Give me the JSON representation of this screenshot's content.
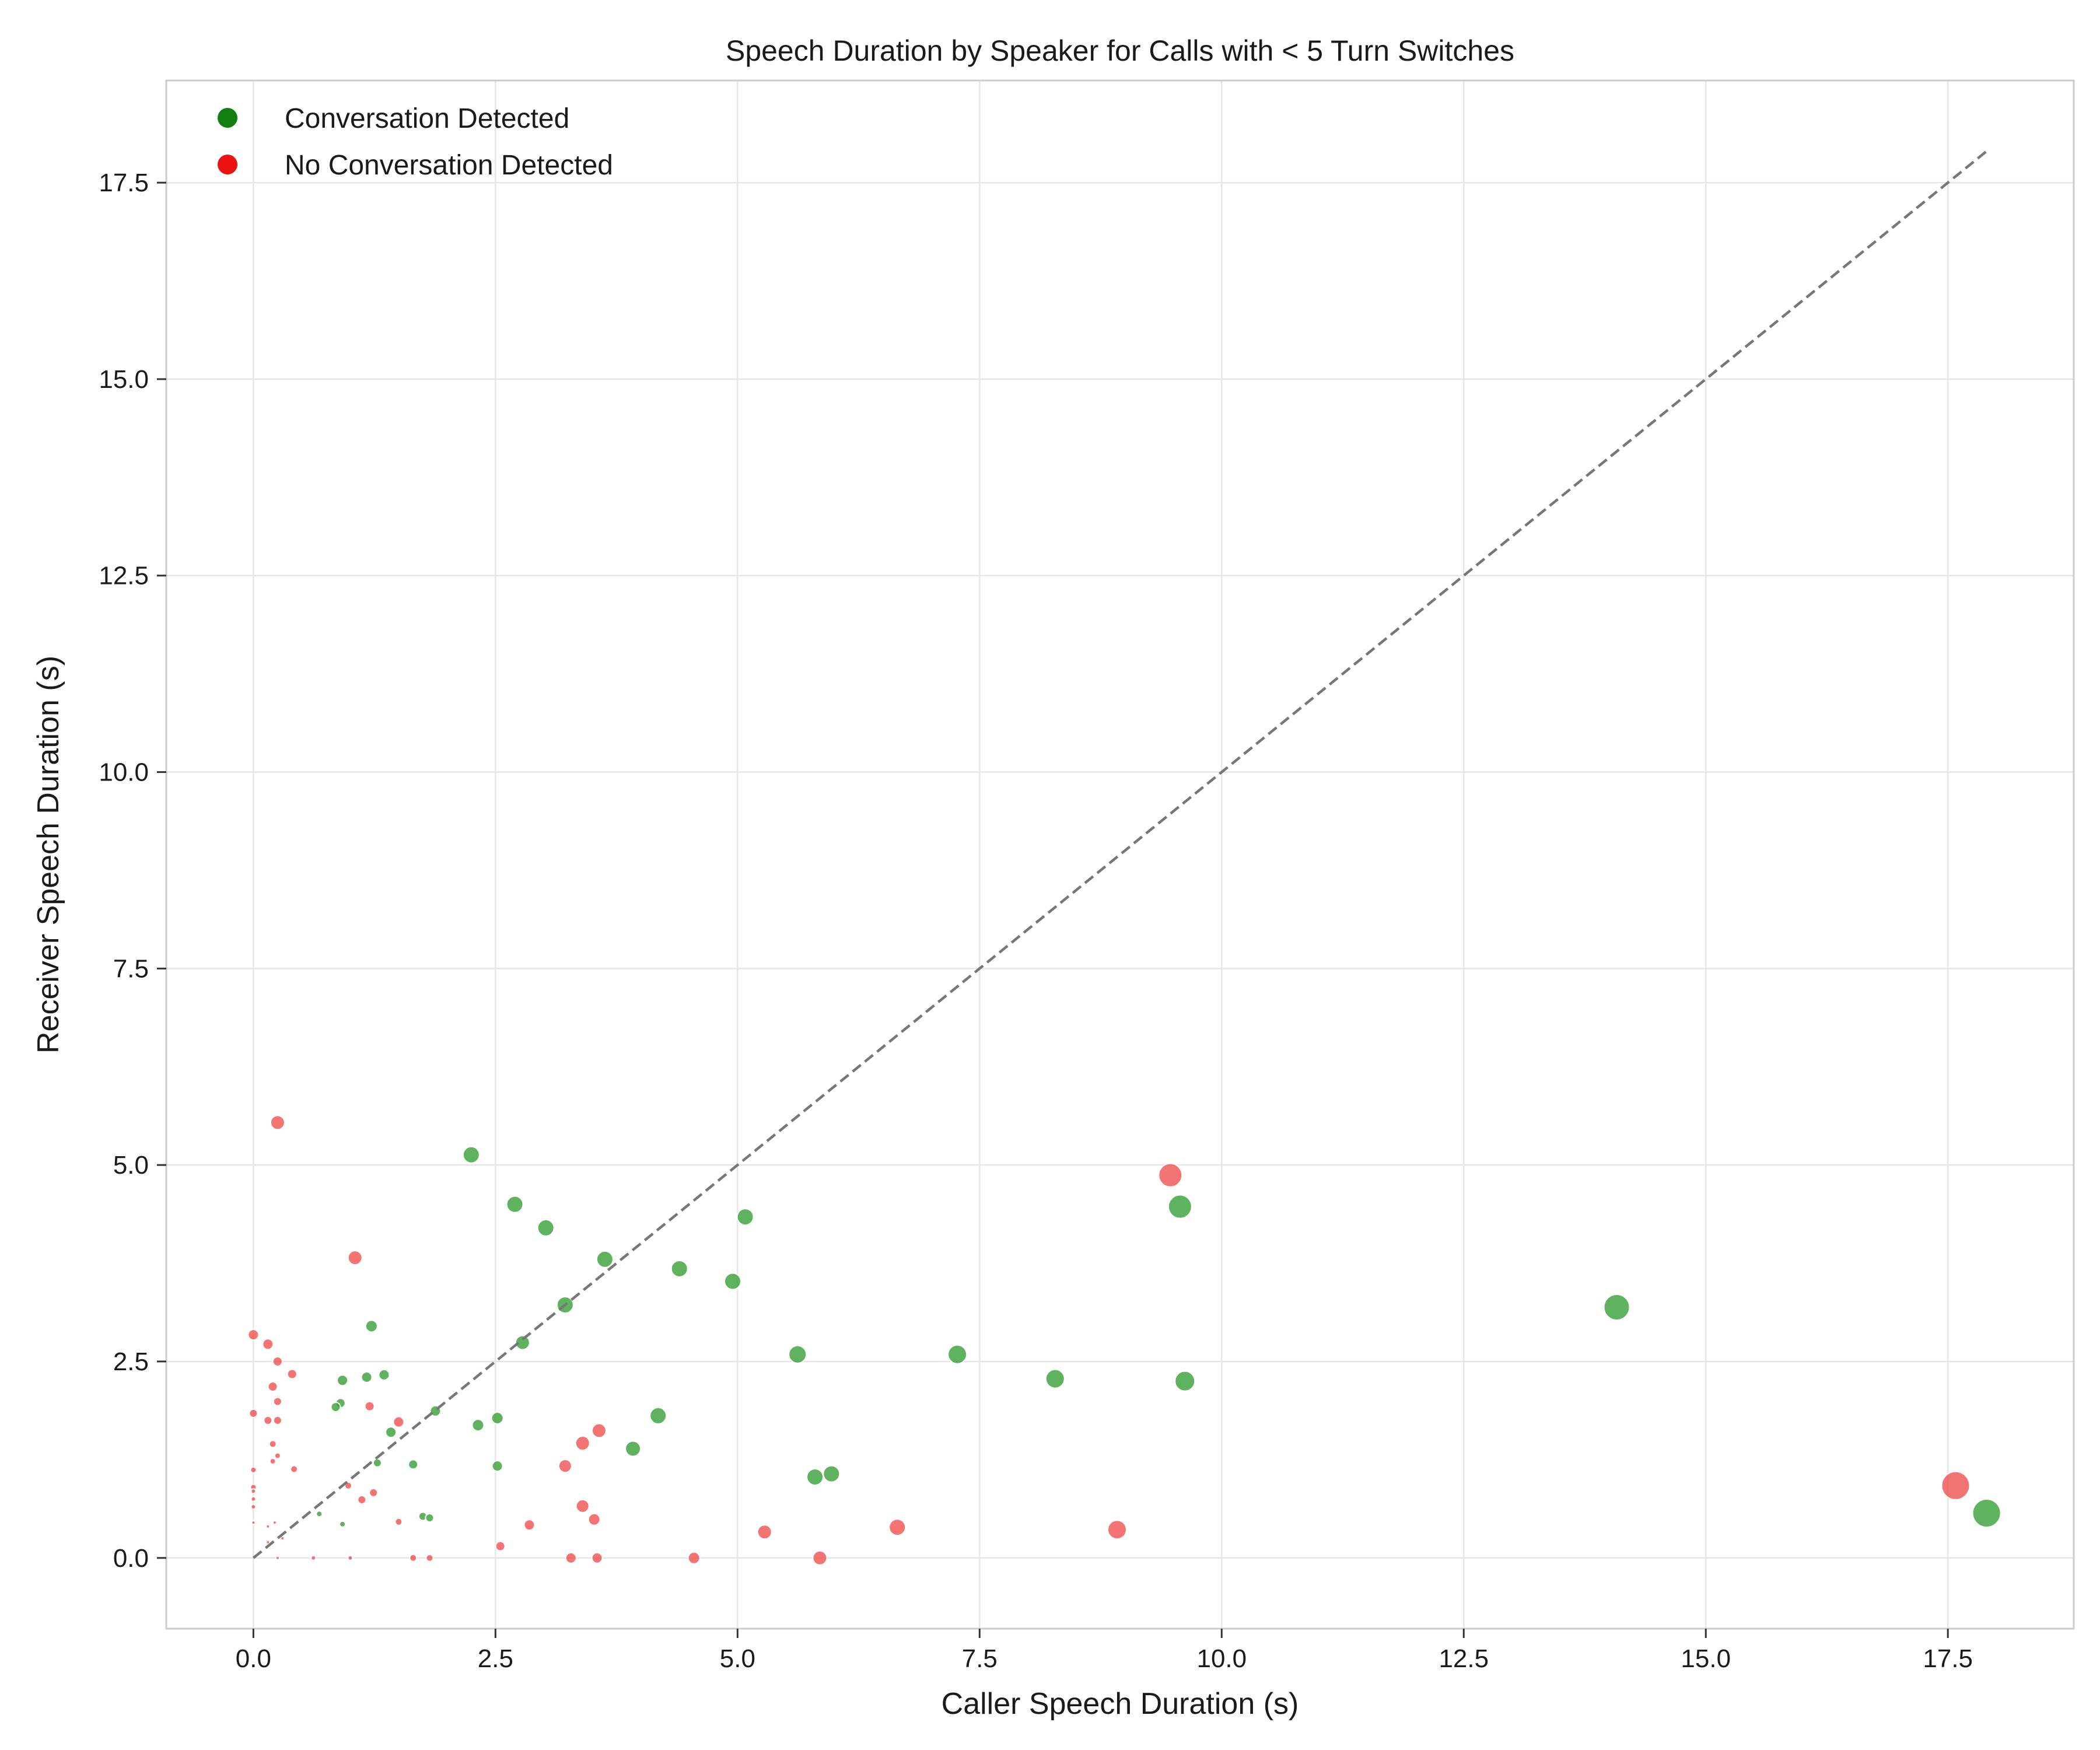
{
  "chart_data": {
    "type": "scatter",
    "title": "Speech Duration by Speaker for Calls with < 5 Turn Switches",
    "xlabel": "Caller Speech Duration (s)",
    "ylabel": "Receiver Speech Duration (s)",
    "xlim": [
      -0.9,
      18.8
    ],
    "ylim": [
      -0.9,
      18.8
    ],
    "xticks": [
      "0.0",
      "2.5",
      "5.0",
      "7.5",
      "10.0",
      "12.5",
      "15.0",
      "17.5"
    ],
    "yticks": [
      "0.0",
      "2.5",
      "5.0",
      "7.5",
      "10.0",
      "12.5",
      "15.0",
      "17.5"
    ],
    "grid": true,
    "legend_position": "top-left",
    "reference_line": {
      "style": "dashed",
      "color": "#777777",
      "from": [
        0,
        0
      ],
      "to": [
        17.9,
        17.9
      ]
    },
    "series": [
      {
        "name": "Conversation Detected",
        "color": "#2a9a2a",
        "legend_color": "#118011",
        "points": [
          [
            2.25,
            5.13
          ],
          [
            2.7,
            4.5
          ],
          [
            3.02,
            4.2
          ],
          [
            3.63,
            3.8
          ],
          [
            4.4,
            3.68
          ],
          [
            5.08,
            4.34
          ],
          [
            4.95,
            3.52
          ],
          [
            3.22,
            3.22
          ],
          [
            2.78,
            2.74
          ],
          [
            1.22,
            2.95
          ],
          [
            0.92,
            2.26
          ],
          [
            1.17,
            2.3
          ],
          [
            1.35,
            2.33
          ],
          [
            0.9,
            1.97
          ],
          [
            0.85,
            1.92
          ],
          [
            1.88,
            1.87
          ],
          [
            2.32,
            1.69
          ],
          [
            2.52,
            1.78
          ],
          [
            1.42,
            1.6
          ],
          [
            4.18,
            1.81
          ],
          [
            3.92,
            1.39
          ],
          [
            1.28,
            1.21
          ],
          [
            1.65,
            1.19
          ],
          [
            2.52,
            1.17
          ],
          [
            5.62,
            2.59
          ],
          [
            7.27,
            2.59
          ],
          [
            8.28,
            2.28
          ],
          [
            9.62,
            2.25
          ],
          [
            5.8,
            1.03
          ],
          [
            5.97,
            1.07
          ],
          [
            1.75,
            0.53
          ],
          [
            1.82,
            0.51
          ],
          [
            0.68,
            0.56
          ],
          [
            0.92,
            0.43
          ],
          [
            9.57,
            4.47
          ],
          [
            14.08,
            3.19
          ],
          [
            17.9,
            0.57
          ]
        ],
        "sizes": [
          14,
          14,
          14,
          14,
          14,
          14,
          14,
          14,
          12,
          10,
          9,
          9,
          9,
          8,
          8,
          9,
          10,
          10,
          9,
          14,
          13,
          7,
          8,
          9,
          15,
          16,
          16,
          17,
          14,
          14,
          7,
          7,
          5,
          5,
          20,
          22,
          24
        ]
      },
      {
        "name": "No Conversation Detected",
        "color": "#f04545",
        "legend_color": "#ee1111",
        "points": [
          [
            0.25,
            5.54
          ],
          [
            1.05,
            3.82
          ],
          [
            0.0,
            2.84
          ],
          [
            0.15,
            2.72
          ],
          [
            0.25,
            2.5
          ],
          [
            0.4,
            2.34
          ],
          [
            0.2,
            2.18
          ],
          [
            0.25,
            1.99
          ],
          [
            0.0,
            1.84
          ],
          [
            0.15,
            1.75
          ],
          [
            0.25,
            1.75
          ],
          [
            1.2,
            1.93
          ],
          [
            1.5,
            1.73
          ],
          [
            0.2,
            1.45
          ],
          [
            0.25,
            1.3
          ],
          [
            0.2,
            1.23
          ],
          [
            0.0,
            1.12
          ],
          [
            0.42,
            1.13
          ],
          [
            1.12,
            0.74
          ],
          [
            1.24,
            0.83
          ],
          [
            0.98,
            0.92
          ],
          [
            0.0,
            0.9
          ],
          [
            0.0,
            0.85
          ],
          [
            0.0,
            0.75
          ],
          [
            0.0,
            0.65
          ],
          [
            0.0,
            0.45
          ],
          [
            0.15,
            0.4
          ],
          [
            0.22,
            0.45
          ],
          [
            1.5,
            0.46
          ],
          [
            2.85,
            0.42
          ],
          [
            2.55,
            0.15
          ],
          [
            3.22,
            1.17
          ],
          [
            3.4,
            1.46
          ],
          [
            3.57,
            1.62
          ],
          [
            3.4,
            0.66
          ],
          [
            3.52,
            0.49
          ],
          [
            3.28,
            0.0
          ],
          [
            3.55,
            0.0
          ],
          [
            4.55,
            0.0
          ],
          [
            5.28,
            0.33
          ],
          [
            5.85,
            0.0
          ],
          [
            6.65,
            0.39
          ],
          [
            8.92,
            0.36
          ],
          [
            9.47,
            4.87
          ],
          [
            17.58,
            0.92
          ],
          [
            1.65,
            0.0
          ],
          [
            1.82,
            0.0
          ],
          [
            1.0,
            0.0
          ],
          [
            0.62,
            0.0
          ],
          [
            0.25,
            0.0
          ],
          [
            0.3,
            0.25
          ],
          [
            0.15,
            0.2
          ]
        ],
        "sizes": [
          12,
          12,
          9,
          9,
          8,
          8,
          8,
          7,
          7,
          7,
          7,
          8,
          9,
          6,
          5,
          5,
          5,
          6,
          7,
          7,
          6,
          5,
          4,
          4,
          4,
          3,
          3,
          3,
          6,
          9,
          8,
          11,
          12,
          12,
          11,
          10,
          9,
          9,
          10,
          12,
          12,
          14,
          16,
          20,
          24,
          6,
          6,
          4,
          4,
          3,
          3,
          3
        ]
      }
    ]
  }
}
